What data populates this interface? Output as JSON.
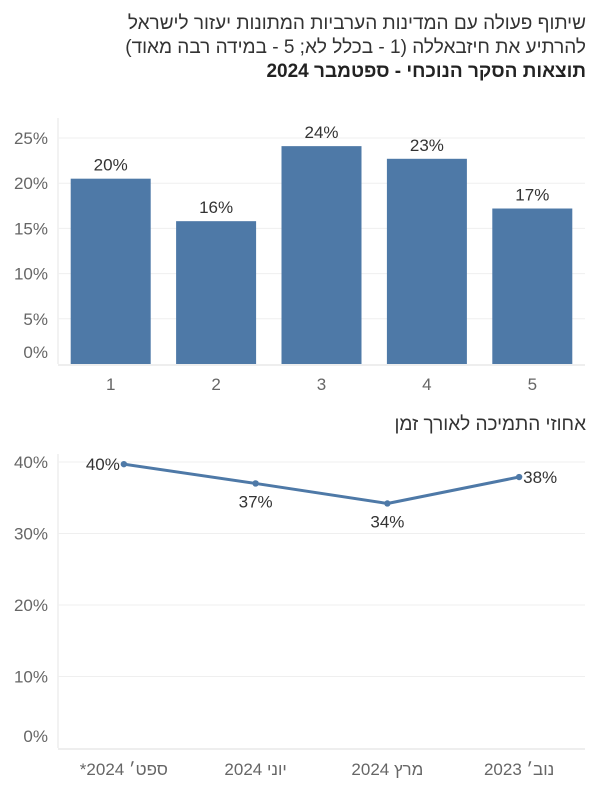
{
  "header": {
    "title_line1": "שיתוף פעולה עם המדינות הערביות המתונות יעזור לישראל",
    "title_line2": "להרתיע את חיזבאללה (1 - בכלל לא; 5 - במידה רבה מאוד)",
    "subtitle": "תוצאות הסקר הנוכחי - ספטמבר 2024"
  },
  "section2": {
    "title": "אחוזי התמיכה לאורך זמן"
  },
  "chart_data": [
    {
      "type": "bar",
      "categories": [
        "1",
        "2",
        "3",
        "4",
        "5"
      ],
      "values": [
        20.5,
        15.8,
        24.1,
        22.7,
        17.2
      ],
      "data_labels": [
        "20%",
        "16%",
        "24%",
        "23%",
        "17%"
      ],
      "yticks": [
        "0%",
        "5%",
        "10%",
        "15%",
        "20%",
        "25%"
      ],
      "ylim": [
        0,
        25
      ],
      "grid": true,
      "bar_color": "#4e79a7"
    },
    {
      "type": "line",
      "categories": [
        "ספט׳ 2024*",
        "יוני 2024",
        "מרץ 2024",
        "נוב׳ 2023"
      ],
      "values": [
        39.7,
        37,
        34.2,
        37.9
      ],
      "data_labels": [
        "40%",
        "37%",
        "34%",
        "38%"
      ],
      "yticks": [
        "0%",
        "10%",
        "20%",
        "30%",
        "40%"
      ],
      "ylim": [
        0,
        40
      ],
      "grid": true,
      "line_color": "#4e79a7"
    }
  ]
}
